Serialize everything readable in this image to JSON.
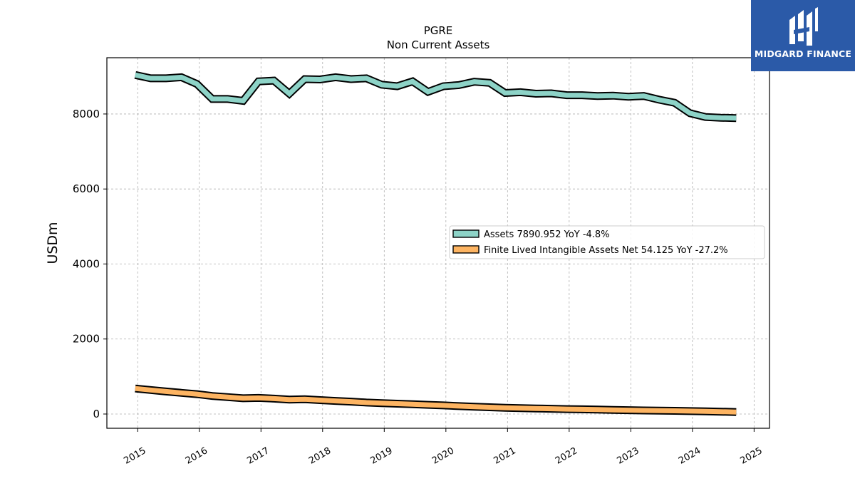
{
  "brand": {
    "name": "MIDGARD FINANCE",
    "color": "#2b5aa8"
  },
  "chart_data": {
    "type": "line",
    "title": "PGRE",
    "subtitle": "Non Current  Assets",
    "ylabel": "USDm",
    "xlabel": "",
    "ylim": [
      -380,
      9500
    ],
    "xlim": [
      2014.5,
      2025.25
    ],
    "yticks": [
      0,
      2000,
      4000,
      6000,
      8000
    ],
    "xticks": [
      "2015",
      "2016",
      "2017",
      "2018",
      "2019",
      "2020",
      "2021",
      "2022",
      "2023",
      "2024",
      "2025"
    ],
    "grid": true,
    "legend_position": "center-right",
    "series": [
      {
        "name": "Assets  7890.952 YoY -4.8%",
        "color": "#8dd3c7",
        "x": [
          2014.96,
          2015.21,
          2015.46,
          2015.71,
          2015.96,
          2016.21,
          2016.46,
          2016.71,
          2016.96,
          2017.21,
          2017.46,
          2017.71,
          2017.96,
          2018.21,
          2018.46,
          2018.71,
          2018.96,
          2019.21,
          2019.46,
          2019.71,
          2019.96,
          2020.21,
          2020.46,
          2020.71,
          2020.96,
          2021.21,
          2021.46,
          2021.71,
          2021.96,
          2022.21,
          2022.46,
          2022.71,
          2022.96,
          2023.21,
          2023.46,
          2023.71,
          2023.96,
          2024.21,
          2024.46,
          2024.71
        ],
        "y": [
          9040,
          8950,
          8950,
          8980,
          8800,
          8400,
          8400,
          8350,
          8870,
          8890,
          8540,
          8930,
          8920,
          8980,
          8930,
          8950,
          8780,
          8740,
          8870,
          8590,
          8740,
          8770,
          8860,
          8830,
          8560,
          8580,
          8540,
          8550,
          8500,
          8500,
          8480,
          8490,
          8460,
          8480,
          8380,
          8300,
          8020,
          7920,
          7900,
          7891
        ]
      },
      {
        "name": "Finite Lived Intangible Assets Net  54.125 YoY -27.2%",
        "color": "#fdb462",
        "x": [
          2014.96,
          2015.21,
          2015.46,
          2015.71,
          2015.96,
          2016.21,
          2016.46,
          2016.71,
          2016.96,
          2017.21,
          2017.46,
          2017.71,
          2017.96,
          2018.21,
          2018.46,
          2018.71,
          2018.96,
          2019.21,
          2019.46,
          2019.71,
          2019.96,
          2020.21,
          2020.46,
          2020.71,
          2020.96,
          2021.21,
          2021.46,
          2021.71,
          2021.96,
          2022.21,
          2022.46,
          2022.71,
          2022.96,
          2023.21,
          2023.46,
          2023.71,
          2023.96,
          2024.21,
          2024.46,
          2024.71
        ],
        "y": [
          680,
          640,
          600,
          565,
          530,
          480,
          450,
          420,
          430,
          410,
          385,
          395,
          370,
          350,
          330,
          305,
          290,
          275,
          260,
          245,
          230,
          210,
          195,
          180,
          165,
          155,
          148,
          140,
          132,
          125,
          118,
          110,
          102,
          95,
          90,
          85,
          78,
          70,
          62,
          54
        ]
      }
    ]
  }
}
